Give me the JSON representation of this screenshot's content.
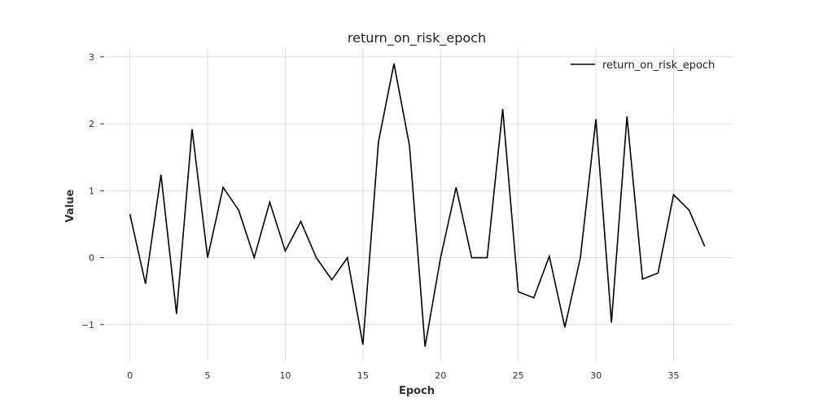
{
  "chart_data": {
    "type": "line",
    "title": "return_on_risk_epoch",
    "xlabel": "Epoch",
    "ylabel": "Value",
    "xlim": [
      -1.5,
      38.8
    ],
    "ylim": [
      -1.55,
      3.12
    ],
    "x_ticks": [
      0,
      5,
      10,
      15,
      20,
      25,
      30,
      35
    ],
    "y_ticks": [
      -1,
      0,
      1,
      2,
      3
    ],
    "y_tick_labels": [
      "−1",
      "0",
      "1",
      "2",
      "3"
    ],
    "grid": true,
    "legend_position": "top-right",
    "series": [
      {
        "name": "return_on_risk_epoch",
        "color": "#000000",
        "x": [
          0,
          1,
          2,
          3,
          4,
          5,
          6,
          7,
          8,
          9,
          10,
          11,
          12,
          13,
          14,
          15,
          16,
          17,
          18,
          19,
          20,
          21,
          22,
          23,
          24,
          25,
          26,
          27,
          28,
          29,
          30,
          31,
          32,
          33,
          34,
          35,
          36,
          37
        ],
        "values": [
          0.65,
          -0.39,
          1.24,
          -0.84,
          1.92,
          0.0,
          1.05,
          0.71,
          0.0,
          0.83,
          0.1,
          0.54,
          0.0,
          -0.33,
          0.0,
          -1.3,
          1.73,
          2.9,
          1.67,
          -1.33,
          0.0,
          1.05,
          0.0,
          0.0,
          2.22,
          -0.51,
          -0.6,
          0.02,
          -1.04,
          0.0,
          2.07,
          -0.97,
          2.11,
          -0.32,
          -0.23,
          0.94,
          0.71,
          0.17
        ]
      }
    ]
  }
}
